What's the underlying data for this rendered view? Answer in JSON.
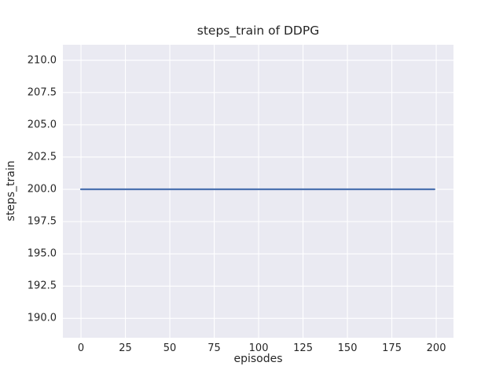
{
  "chart_data": {
    "type": "line",
    "title": "steps_train of DDPG",
    "xlabel": "episodes",
    "ylabel": "steps_train",
    "xlim": [
      -10.2,
      209.7
    ],
    "ylim": [
      188.5,
      211.2
    ],
    "xticks": [
      0,
      25,
      50,
      75,
      100,
      125,
      150,
      175,
      200
    ],
    "xtick_labels": [
      "0",
      "25",
      "50",
      "75",
      "100",
      "125",
      "150",
      "175",
      "200"
    ],
    "yticks": [
      190.0,
      192.5,
      195.0,
      197.5,
      200.0,
      202.5,
      205.0,
      207.5,
      210.0
    ],
    "ytick_labels": [
      "190.0",
      "192.5",
      "195.0",
      "197.5",
      "200.0",
      "202.5",
      "205.0",
      "207.5",
      "210.0"
    ],
    "grid": true,
    "legend": "none",
    "plot_background": "#EAEAF2",
    "grid_color": "#FFFFFF",
    "series": [
      {
        "name": "steps_train",
        "color": "#4C72B0",
        "x": [
          0,
          199
        ],
        "values": [
          200,
          200
        ]
      }
    ]
  }
}
